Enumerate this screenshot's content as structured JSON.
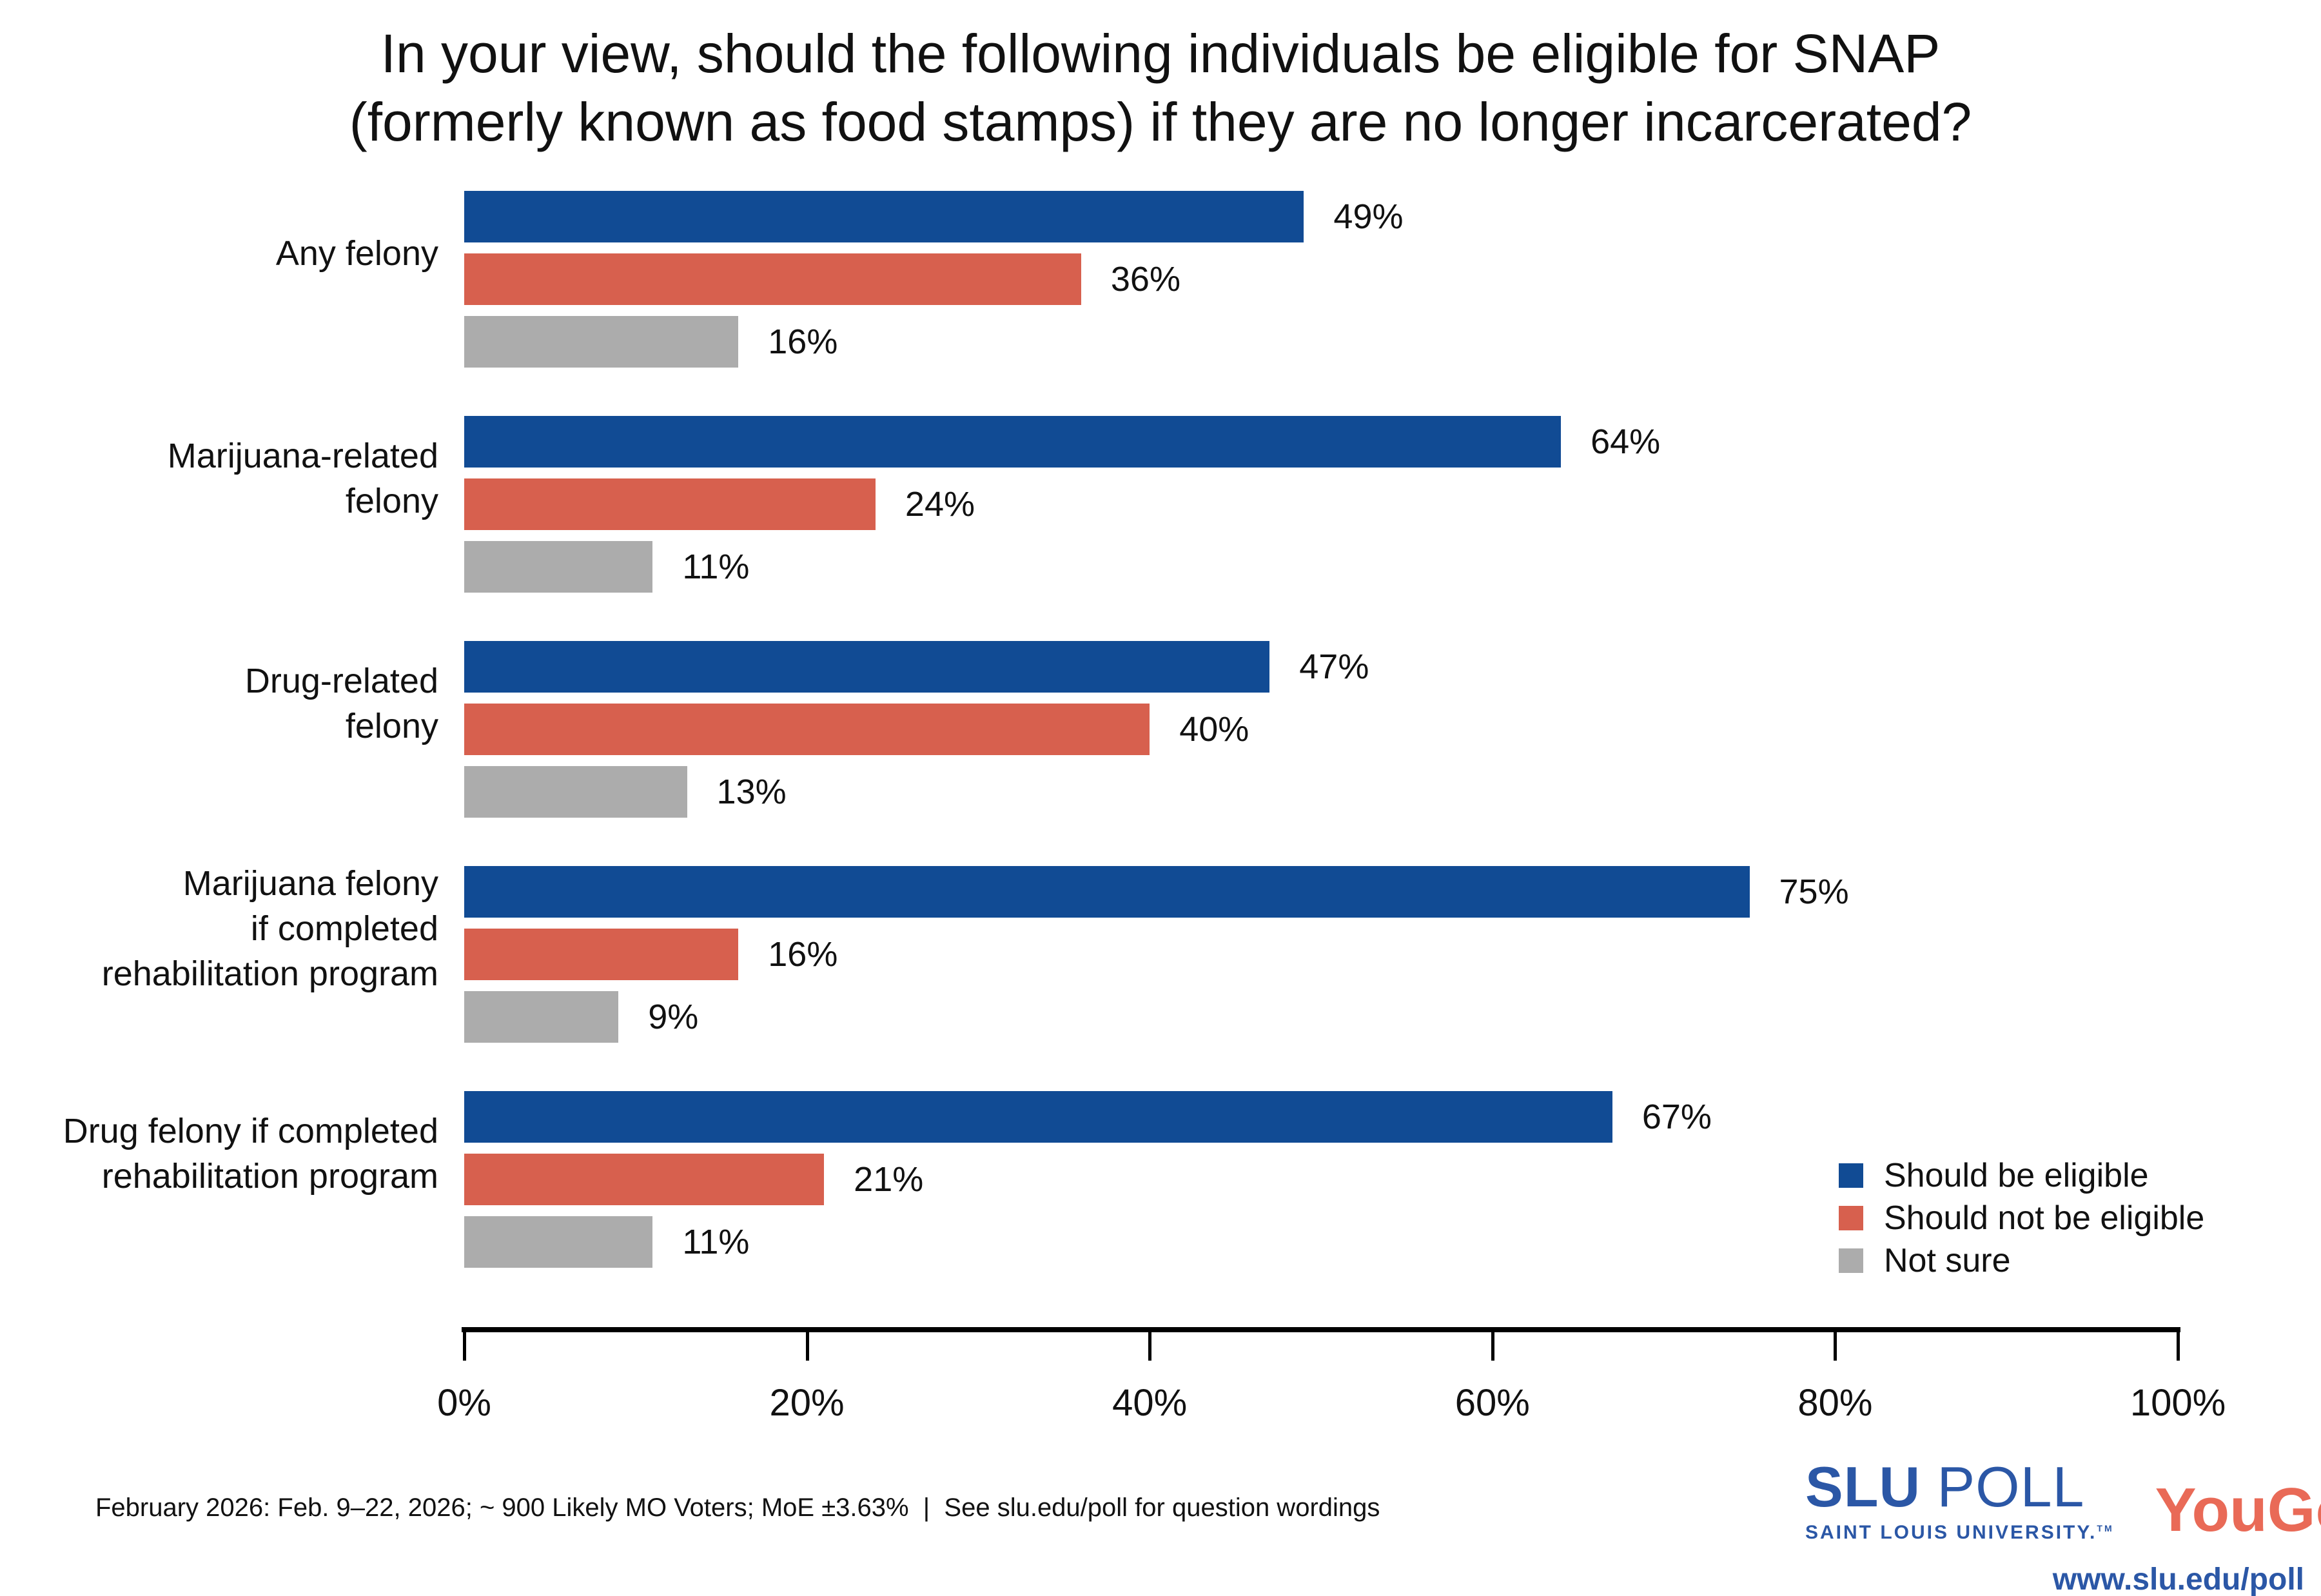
{
  "title": {
    "line1": "In your view, should the following individuals be eligible for SNAP",
    "line2": "(formerly known as food stamps) if they are no longer incarcerated?"
  },
  "chart_data": {
    "type": "bar",
    "orientation": "horizontal",
    "title": "In your view, should the following individuals be eligible for SNAP (formerly known as food stamps) if they are no longer incarcerated?",
    "categories": [
      "Any felony",
      "Marijuana-related felony",
      "Drug-related felony",
      "Marijuana felony if completed rehabilitation program",
      "Drug felony if completed rehabilitation program"
    ],
    "category_lines": [
      [
        "Any felony"
      ],
      [
        "Marijuana-related",
        "felony"
      ],
      [
        "Drug-related",
        "felony"
      ],
      [
        "Marijuana felony",
        "if completed",
        "rehabilitation program"
      ],
      [
        "Drug felony if completed",
        "rehabilitation program"
      ]
    ],
    "series": [
      {
        "name": "Should be eligible",
        "color": "#114B94",
        "values": [
          49,
          64,
          47,
          75,
          67
        ]
      },
      {
        "name": "Should not be eligible",
        "color": "#D7604E",
        "values": [
          36,
          24,
          40,
          16,
          21
        ]
      },
      {
        "name": "Not sure",
        "color": "#ACACAC",
        "values": [
          16,
          11,
          13,
          9,
          11
        ]
      }
    ],
    "value_suffix": "%",
    "xlim": [
      0,
      100
    ],
    "x_ticks": [
      0,
      20,
      40,
      60,
      80,
      100
    ],
    "x_tick_labels": [
      "0%",
      "20%",
      "40%",
      "60%",
      "80%",
      "100%"
    ],
    "grid": false,
    "legend_position": "bottom-right"
  },
  "footer": {
    "text": "February 2026: Feb. 9–22, 2026; ~ 900 Likely MO Voters; MoE ±3.63%  |  See slu.edu/poll for question wordings"
  },
  "branding": {
    "slu_word1": "SLU",
    "slu_word2": " POLL",
    "slu_sub": "SAINT LOUIS UNIVERSITY.",
    "slu_tm": "TM",
    "yougov": "YouGov",
    "yougov_reg": "®",
    "url": "www.slu.edu/poll",
    "slu_blue": "#2B57A6",
    "yougov_coral": "#E96A57"
  }
}
